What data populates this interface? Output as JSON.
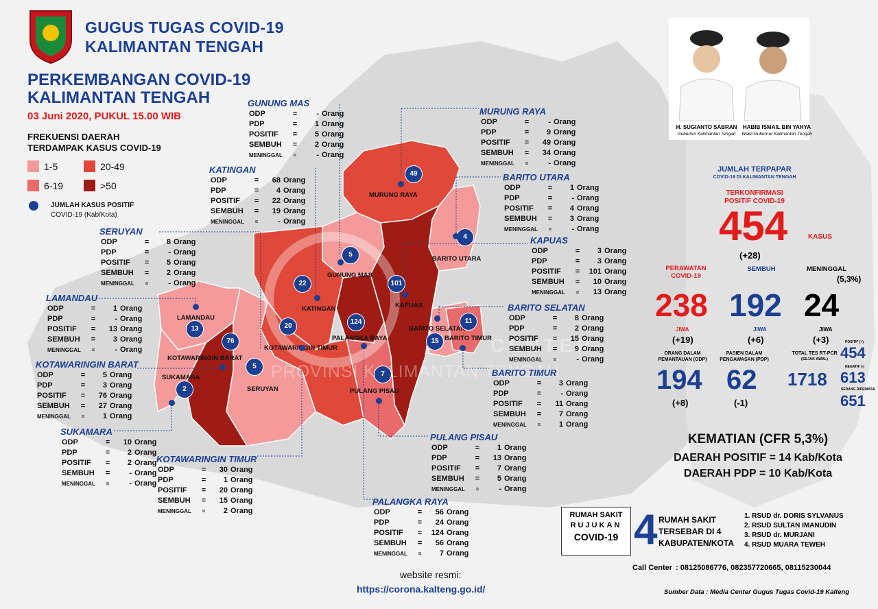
{
  "header": {
    "org_line1": "GUGUS TUGAS COVID-19",
    "org_line2": "KALIMANTAN TENGAH",
    "title_line1": "PERKEMBANGAN COVID-19",
    "title_line2": "KALIMANTAN TENGAH",
    "date": "03 Juni 2020, PUKUL 15.00 WIB"
  },
  "legend": {
    "title_line1": "FREKUENSI DAERAH",
    "title_line2": "TERDAMPAK KASUS COVID-19",
    "items": [
      {
        "label": "1-5",
        "color": "#f49a9a"
      },
      {
        "label": "20-49",
        "color": "#e0483a"
      },
      {
        "label": "6-19",
        "color": "#e86a6a"
      },
      {
        "label": ">50",
        "color": "#9e1c14"
      }
    ],
    "dot_label_line1": "JUMLAH KASUS POSITIF",
    "dot_label_line2": "COVID-19 (Kab/Kota)"
  },
  "row_labels": {
    "odp": "ODP",
    "pdp": "PDP",
    "positif": "POSITIF",
    "sembuh": "SEMBUH",
    "meninggal": "MENINGGAL",
    "eq": "=",
    "unit": "Orang"
  },
  "regions": [
    {
      "name": "GUNUNG MAS",
      "odp": "-",
      "pdp": "1",
      "positif": "5",
      "sembuh": "2",
      "meninggal": "-"
    },
    {
      "name": "MURUNG RAYA",
      "odp": "-",
      "pdp": "9",
      "positif": "49",
      "sembuh": "34",
      "meninggal": "-"
    },
    {
      "name": "KATINGAN",
      "odp": "68",
      "pdp": "4",
      "positif": "22",
      "sembuh": "19",
      "meninggal": "-"
    },
    {
      "name": "BARITO UTARA",
      "odp": "1",
      "pdp": "-",
      "positif": "4",
      "sembuh": "3",
      "meninggal": "-"
    },
    {
      "name": "SERUYAN",
      "odp": "8",
      "pdp": "-",
      "positif": "5",
      "sembuh": "2",
      "meninggal": "-"
    },
    {
      "name": "KAPUAS",
      "odp": "3",
      "pdp": "3",
      "positif": "101",
      "sembuh": "10",
      "meninggal": "13"
    },
    {
      "name": "LAMANDAU",
      "odp": "1",
      "pdp": "-",
      "positif": "13",
      "sembuh": "3",
      "meninggal": "-"
    },
    {
      "name": "BARITO SELATAN",
      "odp": "8",
      "pdp": "2",
      "positif": "15",
      "sembuh": "9",
      "meninggal": "-"
    },
    {
      "name": "KOTAWARINGIN BARAT",
      "odp": "5",
      "pdp": "3",
      "positif": "76",
      "sembuh": "27",
      "meninggal": "1"
    },
    {
      "name": "BARITO TIMUR",
      "odp": "3",
      "pdp": "-",
      "positif": "11",
      "sembuh": "7",
      "meninggal": "1"
    },
    {
      "name": "SUKAMARA",
      "odp": "10",
      "pdp": "2",
      "positif": "2",
      "sembuh": "-",
      "meninggal": "-"
    },
    {
      "name": "PULANG PISAU",
      "odp": "1",
      "pdp": "13",
      "positif": "7",
      "sembuh": "5",
      "meninggal": "-"
    },
    {
      "name": "KOTAWARINGIN TIMUR",
      "odp": "30",
      "pdp": "1",
      "positif": "20",
      "sembuh": "15",
      "meninggal": "2"
    },
    {
      "name": "PALANGKA RAYA",
      "odp": "56",
      "pdp": "24",
      "positif": "124",
      "sembuh": "56",
      "meninggal": "7"
    }
  ],
  "map_labels": {
    "murung_raya": "MURUNG RAYA",
    "barito_utara": "BARITO UTARA",
    "gunung_mas": "GUNUNG MAS",
    "kapuas": "KAPUAS",
    "katingan": "KATINGAN",
    "lamandau": "LAMANDAU",
    "barito_selatan": "BARITO SELATAN",
    "barito_timur": "BARITO TIMUR",
    "palangka_raya": "PALANGKA RAYA",
    "kotawaringin_barat": "KOTAWARINGIN BARAT",
    "kotawaringin_timur": "KOTAWARINGIN TIMUR",
    "seruyan": "SERUYAN",
    "sukamara": "SUKAMARA",
    "pulang_pisau": "PULANG PISAU"
  },
  "map_dots": {
    "murung_raya": "49",
    "barito_utara": "4",
    "gunung_mas": "5",
    "kapuas": "101",
    "katingan": "22",
    "lamandau": "13",
    "kotawaringin_barat": "76",
    "kotawaringin_timur": "20",
    "palangka_raya": "124",
    "barito_timur": "11",
    "barito_selatan": "15",
    "seruyan": "5",
    "sukamara": "2",
    "pulang_pisau": "7"
  },
  "watermark": {
    "line1": "CENTER",
    "line2": "PROVINSI KALIMANTAN TENGAH"
  },
  "officials": {
    "gov_name": "H. SUGIANTO SABRAN",
    "gov_title": "Gubernur Kalimantan Tengah",
    "vice_name": "HABIB ISMAIL BIN YAHYA",
    "vice_title": "Wakil Gubernur Kalimantan Tengah"
  },
  "stats": {
    "jumlah_terpapar": "JUMLAH TERPAPAR",
    "jumlah_sub": "COVID-19 DI KALIMANTAN TENGAH",
    "terkonfirmasi_line1": "TERKONFIRMASI",
    "terkonfirmasi_line2": "POSITIF COVID-19",
    "total": "454",
    "kasus": "KASUS",
    "total_delta": "(+28)",
    "perawatan_line1": "PERAWATAN",
    "perawatan_line2": "COVID-19",
    "sembuh_label": "SEMBUH",
    "meninggal_label": "MENINGGAL",
    "meninggal_pct": "(5,3%)",
    "perawatan": "238",
    "sembuh": "192",
    "meninggal": "24",
    "jiwa": "JIWA",
    "perawatan_delta": "(+19)",
    "sembuh_delta": "(+6)",
    "meninggal_delta": "(+3)",
    "odp_label_line1": "ORANG DALAM",
    "odp_label_line2": "PEMANTAUAN (ODP)",
    "pdp_label_line1": "PASIEN DALAM",
    "pdp_label_line2": "PENGAWASAN (PDP)",
    "tes_label_line1": "TOTAL TES RT-PCR",
    "tes_label_line2": "(SEJAK AWAL)",
    "odp": "194",
    "odp_delta": "(+8)",
    "pdp": "62",
    "pdp_delta": "(-1)",
    "tes_total": "1718",
    "positif_label": "POSITIF (+)",
    "positif": "454",
    "negatif_label": "NEGATIF (-)",
    "negatif": "613",
    "sedang_label": "SEDANG DIPERIKSA",
    "sedang": "651"
  },
  "summary": {
    "kematian": "KEMATIAN (CFR 5,3%)",
    "daerah_positif": "DAERAH POSITIF = 14 Kab/Kota",
    "daerah_pdp": "DAERAH PDP = 10 Kab/Kota"
  },
  "hospital": {
    "label_line1": "RUMAH SAKIT",
    "label_line2": "RUJUKAN",
    "label_line3": "COVID-19",
    "count": "4",
    "desc_line1": "RUMAH SAKIT",
    "desc_line2": "TERSEBAR DI 4",
    "desc_line3": "KABUPATEN/KOTA",
    "list": [
      "1. RSUD dr. DORIS SYLVANUS",
      "2. RSUD SULTAN IMANUDIN",
      "3. RSUD dr. MURJANI",
      "4. RSUD MUARA TEWEH"
    ]
  },
  "call_center": {
    "label": "Call Center",
    "numbers": ": 08125086776, 082357720665, 08115230044"
  },
  "website": {
    "label": "website resmi:",
    "url": "https://corona.kalteng.go.id/"
  },
  "source": "Sumber Data : Media Center Gugus Tugas Covid-19 Kalteng"
}
